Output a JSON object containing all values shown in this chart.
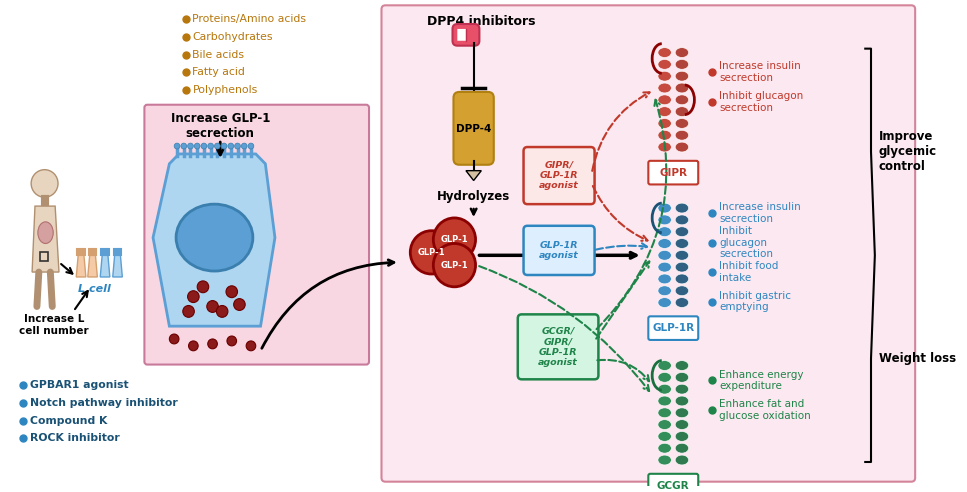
{
  "bg_white": "#ffffff",
  "bg_pink": "#f9e4ec",
  "color_dark_red": "#c0392b",
  "color_red_med": "#a93226",
  "color_blue": "#2e86c1",
  "color_blue_dark": "#1a5276",
  "color_green": "#1e8449",
  "color_gold": "#b7770d",
  "color_teal_blue": "#1a5276",
  "color_gray": "#555555",
  "nutrient_bullets": [
    "Proteins/Amino acids",
    "Carbohydrates",
    "Bile acids",
    "Fatty acid",
    "Polyphenols"
  ],
  "lcell_bullets": [
    "GPBAR1 agonist",
    "Notch pathway inhibitor",
    "Compound K",
    "ROCK inhibitor"
  ],
  "gipr_bullets": [
    "Increase insulin\nsecrection",
    "Inhibit glucagon\nsecrection"
  ],
  "glp1r_bullets": [
    "Increase insulin\nsecrection",
    "Inhibit\nglucagon\nsecrection",
    "Inhibit food\nintake",
    "Inhibit gastric\nemptying"
  ],
  "gcgr_bullets": [
    "Enhance energy\nexpenditure",
    "Enhance fat and\nglucose oxidation"
  ],
  "labels": {
    "l_cell": "L cell",
    "increase_lcell": "Increase L\ncell number",
    "increase_glp1": "Increase GLP-1\nsecrection",
    "hydrolyzes": "Hydrolyzes",
    "dpp4_inhibitors": "DPP4 inhibitors",
    "dpp4": "DPP-4",
    "gipr_agonist": "GIPR/\nGLP-1R\nagonist",
    "glp1r_agonist": "GLP-1R\nagonist",
    "gcgr_agonist": "GCGR/\nGIPR/\nGLP-1R\nagonist",
    "glp1": "GLP-1",
    "gipr_receptor": "GIPR",
    "glp1r_receptor": "GLP-1R",
    "gcgr_receptor": "GCGR",
    "improve": "Improve\nglycemic\ncontrol",
    "weight": "Weight loss"
  }
}
